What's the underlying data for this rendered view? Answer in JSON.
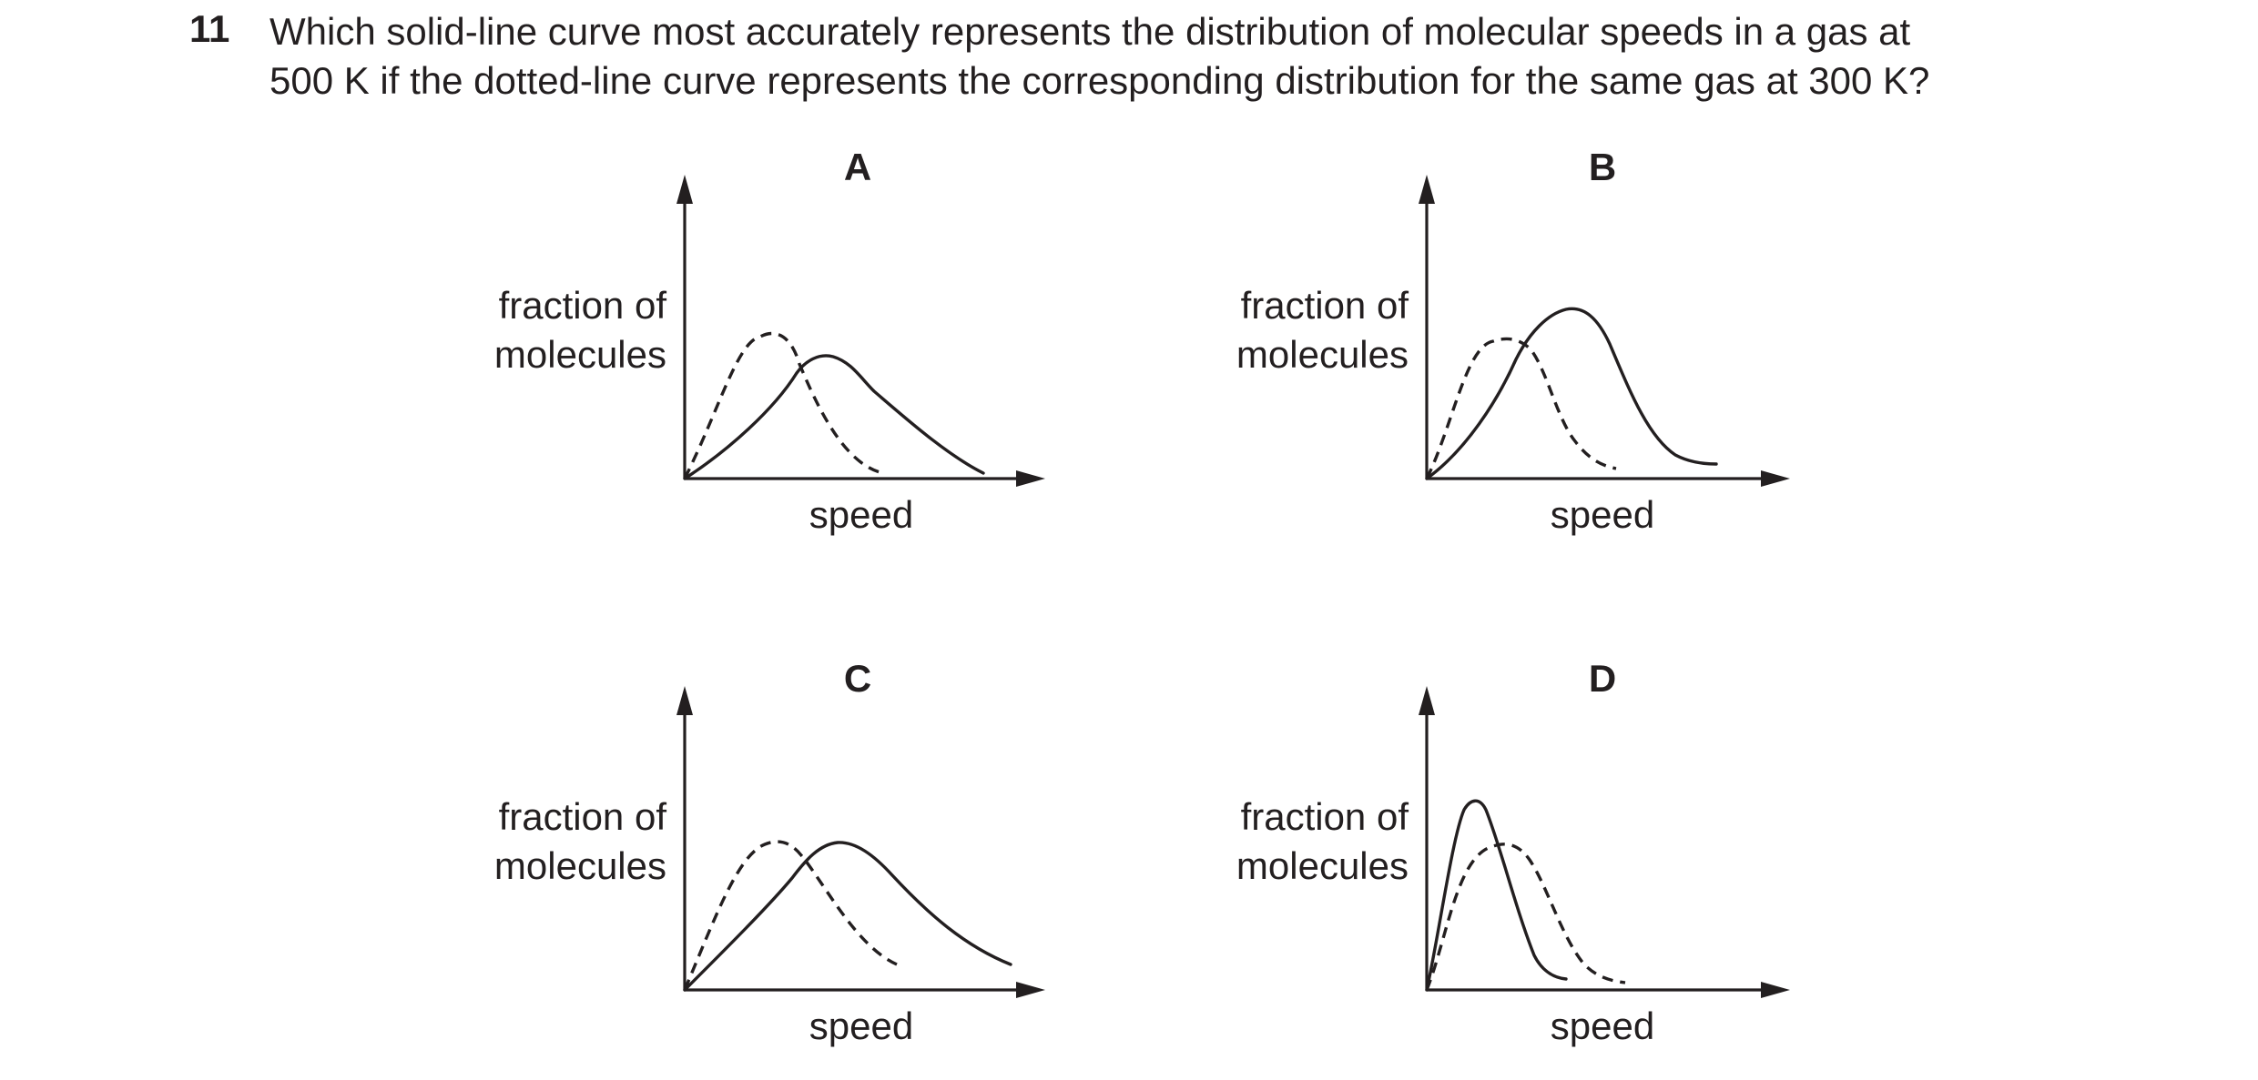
{
  "question": {
    "number": "11",
    "line1": "Which solid-line curve most accurately represents the distribution of molecular speeds in a gas at",
    "line2": "500 K if the dotted-line curve represents the corresponding distribution for the same gas at 300 K?"
  },
  "options": [
    {
      "label": "A",
      "ylabel_line1": "fraction of",
      "ylabel_line2": "molecules",
      "xlabel": "speed"
    },
    {
      "label": "B",
      "ylabel_line1": "fraction of",
      "ylabel_line2": "molecules",
      "xlabel": "speed"
    },
    {
      "label": "C",
      "ylabel_line1": "fraction of",
      "ylabel_line2": "molecules",
      "xlabel": "speed"
    },
    {
      "label": "D",
      "ylabel_line1": "fraction of",
      "ylabel_line2": "molecules",
      "xlabel": "speed"
    }
  ]
}
